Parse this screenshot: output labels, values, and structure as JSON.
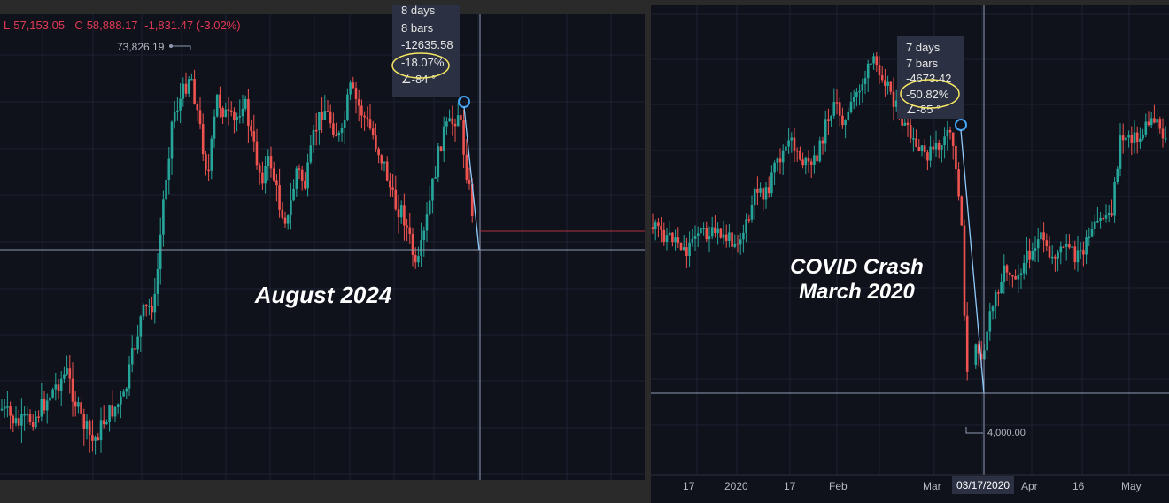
{
  "left": {
    "ohlc_low_label": "L",
    "ohlc_low": "57,153.05",
    "ohlc_close_label": "C",
    "ohlc_close": "58,888.17",
    "ohlc_change": "-1,831.47 (-3.02%)",
    "high_label": "73,826.19",
    "tooltip": [
      "8 days",
      "8 bars",
      "-12635.58",
      "-18.07%",
      "∠-84 °"
    ],
    "annotation": "August 2024"
  },
  "right": {
    "tooltip": [
      "7 days",
      "7 bars",
      "-4673.42",
      "-50.82%",
      "∠-85 °"
    ],
    "annotation_line1": "COVID Crash",
    "annotation_line2": "March 2020",
    "low_label": "4,000.00",
    "x_ticks": [
      "17",
      "2020",
      "17",
      "Feb",
      "Mar",
      "Apr",
      "16",
      "May"
    ],
    "x_selected": "03/17/2020"
  },
  "colors": {
    "up": "#26a69a",
    "down": "#ef5350",
    "bg": "#0f111b",
    "grid": "#1e2231",
    "crosshair": "#8f9bb3",
    "tool": "#42a5f5",
    "highlight": "#f5e663"
  },
  "chart_data": [
    {
      "type": "candlestick",
      "annotation": "August 2024",
      "high": 73826.19,
      "measure": {
        "days": 8,
        "bars": 8,
        "change": -12635.58,
        "change_pct": -18.07,
        "angle_deg": -84
      },
      "last": {
        "low": 57153.05,
        "close": 58888.17,
        "change": -1831.47,
        "change_pct": -3.02
      }
    },
    {
      "type": "candlestick",
      "annotation": "COVID Crash March 2020",
      "low": 4000.0,
      "measure": {
        "days": 7,
        "bars": 7,
        "change": -4673.42,
        "change_pct": -50.82,
        "angle_deg": -85
      },
      "x_ticks": [
        "17",
        "2020",
        "17",
        "Feb",
        "Mar",
        "Apr",
        "16",
        "May"
      ],
      "selected_date": "03/17/2020"
    }
  ]
}
